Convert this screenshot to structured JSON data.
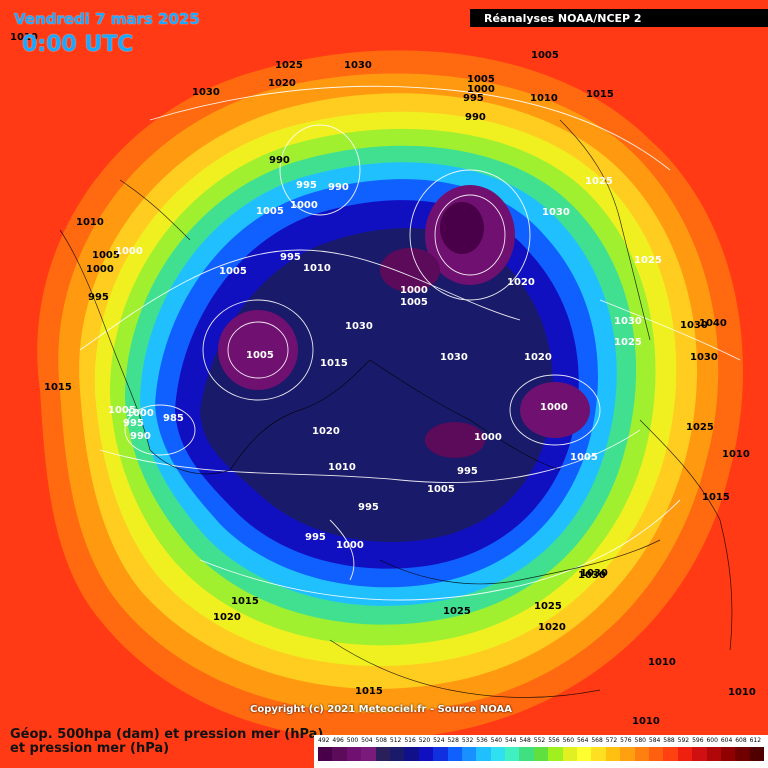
{
  "header": {
    "date": "Vendredi 7 mars 2025",
    "time": "0:00 UTC",
    "source_banner": "Réanalyses NOAA/NCEP 2"
  },
  "footer": {
    "title_line1": "Géop. 500hpa (dam) et pression mer (hPa)",
    "title_line2": "et pression mer (hPa)",
    "copyright": "Copyright (c) 2021 Meteociel.fr - Source NOAA"
  },
  "legend": {
    "labels": [
      "492",
      "496",
      "500",
      "504",
      "508",
      "512",
      "516",
      "520",
      "524",
      "528",
      "532",
      "536",
      "540",
      "544",
      "548",
      "552",
      "556",
      "560",
      "564",
      "568",
      "572",
      "576",
      "580",
      "584",
      "588",
      "592",
      "596",
      "600",
      "604",
      "608",
      "612"
    ],
    "colors": [
      "#4a0048",
      "#5c0a5a",
      "#701070",
      "#7a1a7a",
      "#2a1f5a",
      "#1a1a6a",
      "#10108a",
      "#1010c0",
      "#1030e0",
      "#1060ff",
      "#1890ff",
      "#20c0ff",
      "#30e0f0",
      "#40f0c0",
      "#40e080",
      "#60e040",
      "#a0f020",
      "#e0f020",
      "#ffff30",
      "#ffe020",
      "#ffc010",
      "#ffa010",
      "#ff8010",
      "#ff6010",
      "#ff4010",
      "#f02010",
      "#d01010",
      "#b00808",
      "#900000",
      "#700000",
      "#500000"
    ]
  },
  "isobar_labels": [
    {
      "text": "1010"
    },
    {
      "text": "1030"
    },
    {
      "text": "1025"
    },
    {
      "text": "1030"
    },
    {
      "text": "1020"
    },
    {
      "text": "1005"
    },
    {
      "text": "1000"
    },
    {
      "text": "995"
    },
    {
      "text": "990"
    },
    {
      "text": "1010"
    },
    {
      "text": "1015"
    },
    {
      "text": "1005"
    },
    {
      "text": "990"
    },
    {
      "text": "995"
    },
    {
      "text": "990"
    },
    {
      "text": "1005"
    },
    {
      "text": "1000"
    },
    {
      "text": "1010"
    },
    {
      "text": "1005"
    },
    {
      "text": "1000"
    },
    {
      "text": "1000"
    },
    {
      "text": "995"
    },
    {
      "text": "995"
    },
    {
      "text": "1005"
    },
    {
      "text": "1010"
    },
    {
      "text": "1030"
    },
    {
      "text": "1030"
    },
    {
      "text": "1025"
    },
    {
      "text": "1000"
    },
    {
      "text": "1005"
    },
    {
      "text": "1020"
    },
    {
      "text": "1030"
    },
    {
      "text": "1025"
    },
    {
      "text": "1030"
    },
    {
      "text": "1040"
    },
    {
      "text": "1030"
    },
    {
      "text": "1030"
    },
    {
      "text": "1025"
    },
    {
      "text": "1005"
    },
    {
      "text": "1015"
    },
    {
      "text": "1015"
    },
    {
      "text": "1005"
    },
    {
      "text": "1000"
    },
    {
      "text": "995"
    },
    {
      "text": "985"
    },
    {
      "text": "990"
    },
    {
      "text": "1020"
    },
    {
      "text": "1010"
    },
    {
      "text": "1030"
    },
    {
      "text": "1020"
    },
    {
      "text": "1000"
    },
    {
      "text": "1005"
    },
    {
      "text": "1025"
    },
    {
      "text": "1010"
    },
    {
      "text": "1000"
    },
    {
      "text": "995"
    },
    {
      "text": "1005"
    },
    {
      "text": "995"
    },
    {
      "text": "995"
    },
    {
      "text": "1000"
    },
    {
      "text": "1015"
    },
    {
      "text": "1030"
    },
    {
      "text": "1025"
    },
    {
      "text": "1020"
    },
    {
      "text": "1025"
    },
    {
      "text": "1015"
    },
    {
      "text": "1020"
    },
    {
      "text": "1010"
    },
    {
      "text": "1010"
    },
    {
      "text": "1015"
    },
    {
      "text": "1010"
    }
  ]
}
